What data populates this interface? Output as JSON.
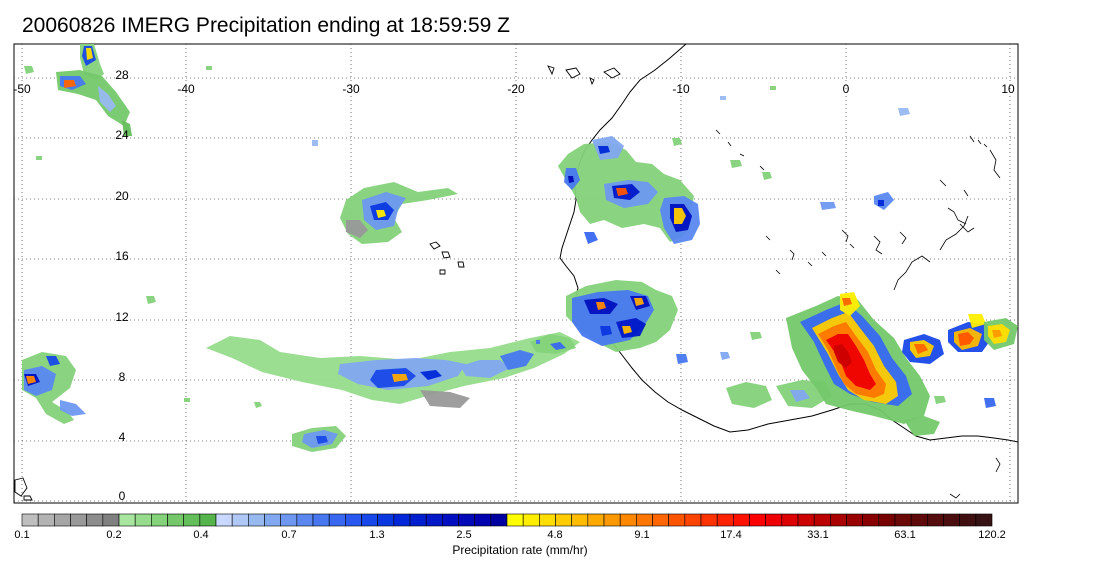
{
  "title": "20060826 IMERG Precipitation ending at 18:59:59 Z",
  "map": {
    "lon_ticks": [
      "-50",
      "-40",
      "-30",
      "-20",
      "-10",
      "0",
      "10"
    ],
    "lat_ticks": [
      "28",
      "24",
      "20",
      "16",
      "12",
      "8",
      "4",
      "0"
    ],
    "lon_range": [
      -50,
      10
    ],
    "lat_range": [
      -1,
      30
    ],
    "grid": "dotted",
    "coastline_color": "#000000"
  },
  "colorbar": {
    "title": "Precipitation rate (mm/hr)",
    "labels": [
      "0.1",
      "0.2",
      "0.4",
      "0.7",
      "1.3",
      "2.5",
      "4.8",
      "9.1",
      "17.4",
      "33.1",
      "63.1",
      "120.2"
    ],
    "colors": [
      "#bfbfbf",
      "#b3b3b3",
      "#a6a6a6",
      "#999999",
      "#8c8c8c",
      "#808080",
      "#a8e6a0",
      "#96dc8c",
      "#84d27a",
      "#74c86a",
      "#64be5a",
      "#55b44c",
      "#c8d8ff",
      "#b0c8f8",
      "#98b8f0",
      "#82a8f0",
      "#6e98f0",
      "#5a88f0",
      "#4878f0",
      "#3868f0",
      "#2858f0",
      "#1848e8",
      "#0a38e0",
      "#0028d8",
      "#0020d0",
      "#0018c8",
      "#0010c0",
      "#0008b8",
      "#0000b0",
      "#0000a0",
      "#ffff00",
      "#ffee00",
      "#ffdd00",
      "#ffcc00",
      "#ffbb00",
      "#ffaa00",
      "#ff9900",
      "#ff8800",
      "#ff7700",
      "#ff6600",
      "#ff5500",
      "#ff4400",
      "#ff3300",
      "#ff2200",
      "#ff1100",
      "#ff0000",
      "#ee0000",
      "#dd0000",
      "#cc0000",
      "#bb0000",
      "#aa0000",
      "#990000",
      "#880000",
      "#770000",
      "#6a0808",
      "#5f0a0a",
      "#540c0c",
      "#4a0e0e",
      "#401010",
      "#361212"
    ]
  }
}
